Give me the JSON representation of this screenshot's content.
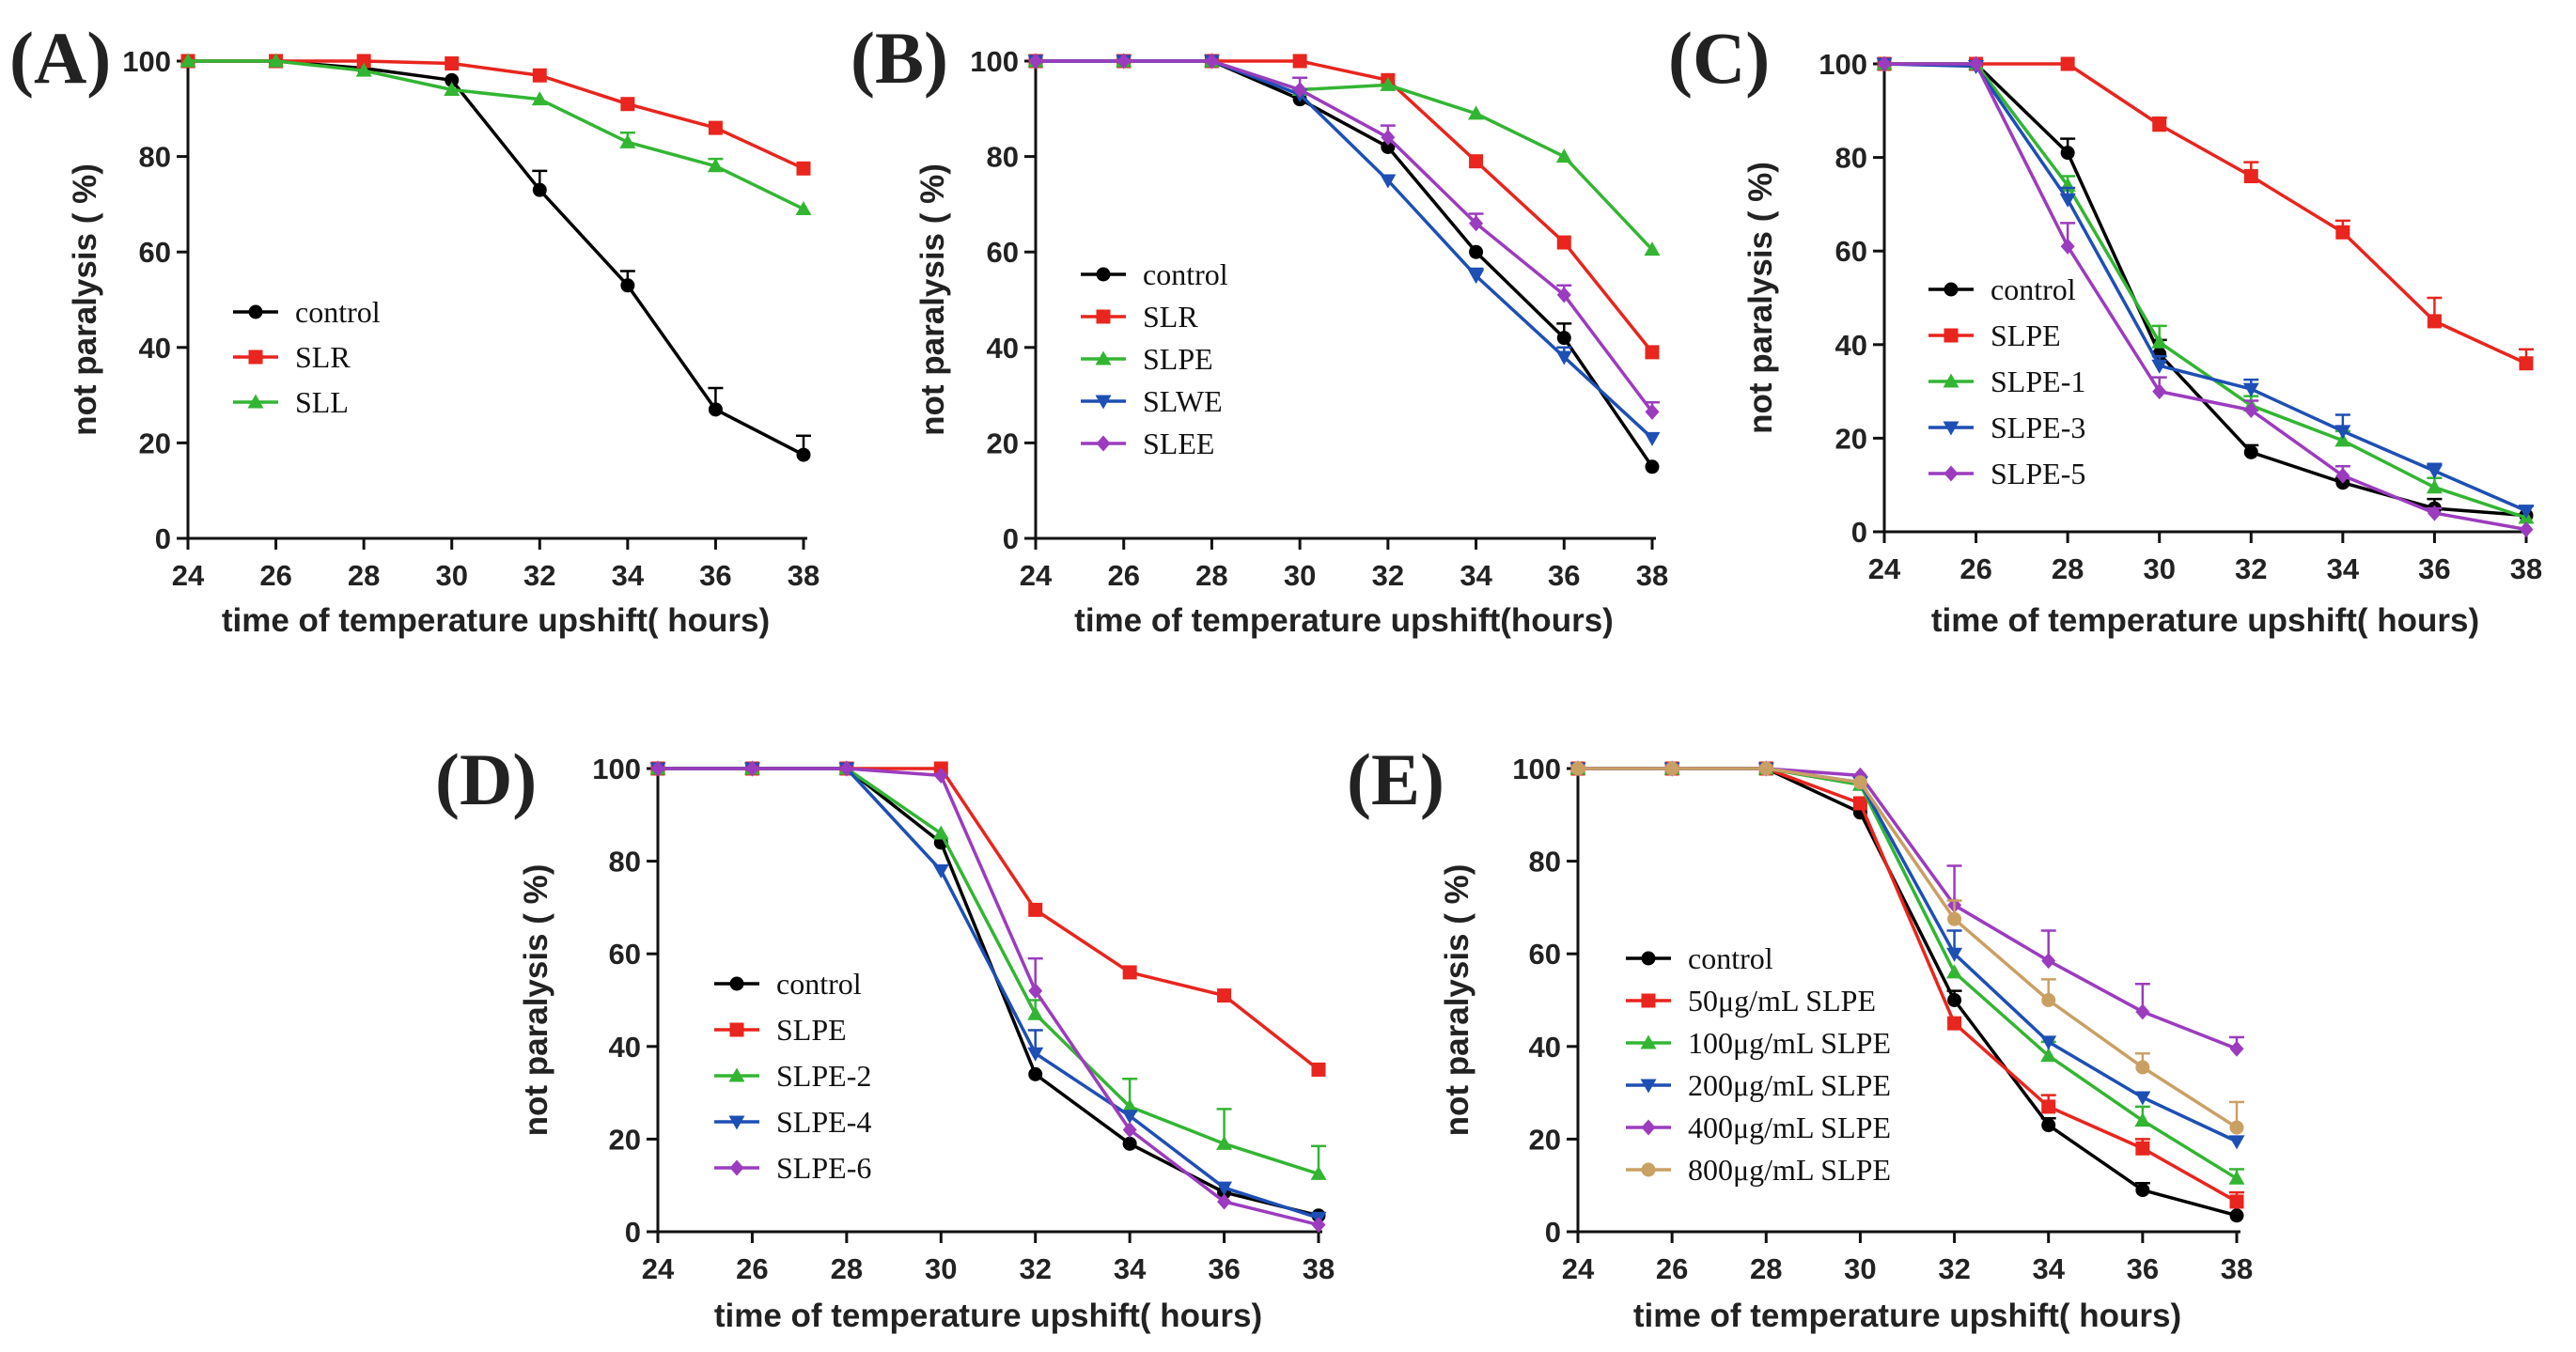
{
  "chart_data": [
    {
      "type": "line",
      "panel_label": "(A)",
      "x": [
        24,
        26,
        28,
        30,
        32,
        34,
        36,
        38
      ],
      "x_ticks": [
        "24",
        "26",
        "28",
        "30",
        "32",
        "34",
        "36",
        "38"
      ],
      "y_ticks": [
        "0",
        "20",
        "40",
        "60",
        "80",
        "100"
      ],
      "xlabel": "time of temperature upshift( hours)",
      "ylabel": "not paralysis ( %)",
      "xlim": [
        24,
        38
      ],
      "ylim": [
        0,
        100
      ],
      "legend_position": "center-left",
      "series": [
        {
          "name": "control",
          "color": "#000000",
          "marker": "circle",
          "values": [
            100,
            100,
            98.5,
            96,
            73,
            53,
            27,
            17.5
          ],
          "errors": [
            0,
            0,
            0,
            0,
            4,
            3,
            4.5,
            4
          ]
        },
        {
          "name": "SLR",
          "color": "#e8251e",
          "marker": "square",
          "values": [
            100,
            100,
            100,
            99.5,
            97,
            91,
            86,
            77.5
          ],
          "errors": [
            0,
            0,
            0,
            0,
            0,
            0,
            0,
            0
          ]
        },
        {
          "name": "SLL",
          "color": "#33b533",
          "marker": "triangle-up",
          "values": [
            100,
            100,
            98,
            94,
            92,
            83,
            78,
            69
          ],
          "errors": [
            0,
            0,
            0,
            0,
            0,
            2,
            1.5,
            0
          ]
        }
      ]
    },
    {
      "type": "line",
      "panel_label": "(B)",
      "x": [
        24,
        26,
        28,
        30,
        32,
        34,
        36,
        38
      ],
      "x_ticks": [
        "24",
        "26",
        "28",
        "30",
        "32",
        "34",
        "36",
        "38"
      ],
      "y_ticks": [
        "0",
        "20",
        "40",
        "60",
        "80",
        "100"
      ],
      "xlabel": "time of temperature upshift(hours)",
      "ylabel": "not paralysis ( %)",
      "xlim": [
        24,
        38
      ],
      "ylim": [
        0,
        100
      ],
      "legend_position": "center-left",
      "series": [
        {
          "name": "control",
          "color": "#000000",
          "marker": "circle",
          "values": [
            100,
            100,
            100,
            92,
            82,
            60,
            42,
            15
          ],
          "errors": [
            0,
            0,
            0,
            0,
            0,
            0,
            3,
            0
          ]
        },
        {
          "name": "SLR",
          "color": "#e8251e",
          "marker": "square",
          "values": [
            100,
            100,
            100,
            100,
            96,
            79,
            62,
            39
          ],
          "errors": [
            0,
            0,
            0,
            0,
            0,
            0,
            0,
            0
          ]
        },
        {
          "name": "SLPE",
          "color": "#33b533",
          "marker": "triangle-up",
          "values": [
            100,
            100,
            100,
            94,
            95,
            89,
            80,
            60.5
          ],
          "errors": [
            0,
            0,
            0,
            0,
            0,
            0,
            0,
            0
          ]
        },
        {
          "name": "SLWE",
          "color": "#1e4fb4",
          "marker": "triangle-down",
          "values": [
            100,
            100,
            100,
            93,
            75,
            55,
            38,
            21
          ],
          "errors": [
            0,
            0,
            0,
            0,
            0,
            1.5,
            2,
            0
          ]
        },
        {
          "name": "SLEE",
          "color": "#9b3cbe",
          "marker": "diamond",
          "values": [
            100,
            100,
            100,
            94,
            84,
            66,
            51,
            26.5
          ],
          "errors": [
            0,
            0,
            0,
            2.5,
            2.5,
            2,
            2,
            2
          ]
        }
      ]
    },
    {
      "type": "line",
      "panel_label": "(C)",
      "x": [
        24,
        26,
        28,
        30,
        32,
        34,
        36,
        38
      ],
      "x_ticks": [
        "24",
        "26",
        "28",
        "30",
        "32",
        "34",
        "36",
        "38"
      ],
      "y_ticks": [
        "0",
        "20",
        "40",
        "60",
        "80",
        "100"
      ],
      "xlabel": "time of temperature upshift( hours)",
      "ylabel": "not paralysis ( %)",
      "xlim": [
        24,
        38
      ],
      "ylim": [
        0,
        100
      ],
      "legend_position": "lower-left",
      "series": [
        {
          "name": "control",
          "color": "#000000",
          "marker": "circle",
          "values": [
            100,
            100,
            81,
            38,
            17,
            10.5,
            5,
            3.5
          ],
          "errors": [
            0,
            0,
            3,
            3,
            1.5,
            1,
            2,
            0
          ]
        },
        {
          "name": "SLPE",
          "color": "#e8251e",
          "marker": "square",
          "values": [
            100,
            100,
            100,
            87,
            76,
            64,
            45,
            36
          ],
          "errors": [
            0,
            0,
            0,
            1.5,
            3,
            2.5,
            5,
            3
          ]
        },
        {
          "name": "SLPE-1",
          "color": "#33b533",
          "marker": "triangle-up",
          "values": [
            100,
            100,
            74,
            40.5,
            27,
            19.5,
            9.5,
            3
          ],
          "errors": [
            0,
            0,
            2,
            3.5,
            2,
            2,
            2,
            0
          ]
        },
        {
          "name": "SLPE-3",
          "color": "#1e4fb4",
          "marker": "triangle-down",
          "values": [
            100,
            99.5,
            71,
            35.5,
            30.5,
            21.5,
            13,
            4.5
          ],
          "errors": [
            0,
            0,
            2.5,
            2,
            2,
            3.5,
            1.5,
            1
          ]
        },
        {
          "name": "SLPE-5",
          "color": "#9b3cbe",
          "marker": "diamond",
          "values": [
            100,
            100,
            61,
            30,
            26,
            12,
            4,
            0.5
          ],
          "errors": [
            0,
            0,
            5,
            3,
            2,
            2,
            1,
            0
          ]
        }
      ]
    },
    {
      "type": "line",
      "panel_label": "(D)",
      "x": [
        24,
        26,
        28,
        30,
        32,
        34,
        36,
        38
      ],
      "x_ticks": [
        "24",
        "26",
        "28",
        "30",
        "32",
        "34",
        "36",
        "38"
      ],
      "y_ticks": [
        "0",
        "20",
        "40",
        "60",
        "80",
        "100"
      ],
      "xlabel": "time of temperature upshift( hours)",
      "ylabel": "not paralysis ( %)",
      "xlim": [
        24,
        38
      ],
      "ylim": [
        0,
        100
      ],
      "legend_position": "lower-left",
      "series": [
        {
          "name": "control",
          "color": "#000000",
          "marker": "circle",
          "values": [
            100,
            100,
            100,
            84,
            34,
            19,
            8.5,
            3.5
          ],
          "errors": [
            0,
            0,
            0,
            0,
            0,
            0,
            0,
            0
          ]
        },
        {
          "name": "SLPE",
          "color": "#e8251e",
          "marker": "square",
          "values": [
            100,
            100,
            100,
            100,
            69.5,
            56,
            51,
            35
          ],
          "errors": [
            0,
            0,
            0,
            0,
            0,
            0,
            0,
            0
          ]
        },
        {
          "name": "SLPE-2",
          "color": "#33b533",
          "marker": "triangle-up",
          "values": [
            100,
            100,
            100,
            86,
            47,
            27,
            19,
            12.5
          ],
          "errors": [
            0,
            0,
            0,
            0,
            3,
            6,
            7.5,
            6
          ]
        },
        {
          "name": "SLPE-4",
          "color": "#1e4fb4",
          "marker": "triangle-down",
          "values": [
            100,
            100,
            100,
            78,
            38.5,
            25,
            9.5,
            3
          ],
          "errors": [
            0,
            0,
            0,
            0,
            5,
            0,
            0,
            0
          ]
        },
        {
          "name": "SLPE-6",
          "color": "#9b3cbe",
          "marker": "diamond",
          "values": [
            100,
            100,
            100,
            98.5,
            52,
            22,
            6.5,
            1.5
          ],
          "errors": [
            0,
            0,
            0,
            0,
            7,
            0,
            0,
            0
          ]
        }
      ]
    },
    {
      "type": "line",
      "panel_label": "(E)",
      "x": [
        24,
        26,
        28,
        30,
        32,
        34,
        36,
        38
      ],
      "x_ticks": [
        "24",
        "26",
        "28",
        "30",
        "32",
        "34",
        "36",
        "38"
      ],
      "y_ticks": [
        "0",
        "20",
        "40",
        "60",
        "80",
        "100"
      ],
      "xlabel": "time of temperature upshift( hours)",
      "ylabel": "not paralysis ( %)",
      "xlim": [
        24,
        38
      ],
      "ylim": [
        0,
        100
      ],
      "legend_position": "lower-left",
      "series": [
        {
          "name": "control",
          "color": "#000000",
          "marker": "circle",
          "values": [
            100,
            100,
            100,
            90.5,
            50,
            23,
            9,
            3.5
          ],
          "errors": [
            0,
            0,
            0,
            0,
            2,
            1.5,
            1.5,
            0
          ]
        },
        {
          "name": "50μg/mL SLPE",
          "color": "#e8251e",
          "marker": "square",
          "values": [
            100,
            100,
            100,
            92.5,
            45,
            27,
            18,
            6.5
          ],
          "errors": [
            0,
            0,
            0,
            0,
            0,
            2.5,
            2,
            2
          ]
        },
        {
          "name": "100μg/mL SLPE",
          "color": "#33b533",
          "marker": "triangle-up",
          "values": [
            100,
            100,
            100,
            96.5,
            56,
            38,
            24,
            11.5
          ],
          "errors": [
            0,
            0,
            0,
            0,
            0,
            3,
            3,
            2
          ]
        },
        {
          "name": "200μg/mL SLPE",
          "color": "#1e4fb4",
          "marker": "triangle-down",
          "values": [
            100,
            100,
            100,
            97,
            60,
            41,
            29,
            19.5
          ],
          "errors": [
            0,
            0,
            0,
            0,
            5,
            0,
            0,
            0
          ]
        },
        {
          "name": "400μg/mL SLPE",
          "color": "#9b3cbe",
          "marker": "diamond",
          "values": [
            100,
            100,
            100,
            98.5,
            70.5,
            58.5,
            47.5,
            39.5
          ],
          "errors": [
            0,
            0,
            0,
            0,
            8.5,
            6.5,
            6,
            2.5
          ]
        },
        {
          "name": "800μg/mL SLPE",
          "color": "#c9a064",
          "marker": "circle",
          "values": [
            100,
            100,
            100,
            97,
            67.5,
            50,
            35.5,
            22.5
          ],
          "errors": [
            0,
            0,
            0,
            0,
            4,
            4.5,
            3,
            5.5
          ]
        }
      ]
    }
  ]
}
